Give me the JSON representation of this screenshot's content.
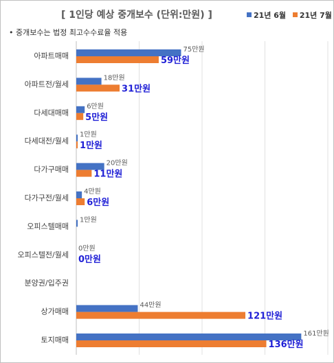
{
  "chart_data": {
    "type": "bar",
    "orientation": "horizontal",
    "title": "[ 1인당 예상 중개보수 (단위:만원) ]",
    "subtitle": "• 중개보수는 법정 최고수수료율 적용",
    "categories": [
      "아파트매매",
      "아파트전/월세",
      "다세대매매",
      "다세대전/월세",
      "다가구매매",
      "다가구전/월세",
      "오피스텔매매",
      "오피스텔전/월세",
      "분양권/입주권",
      "상가매매",
      "토지매매"
    ],
    "series": [
      {
        "name": "21년 6월",
        "color": "#4472c4",
        "values": [
          75,
          18,
          6,
          1,
          20,
          4,
          1,
          0,
          null,
          44,
          161
        ],
        "labels": [
          "75만원",
          "18만원",
          "6만원",
          "1만원",
          "20만원",
          "4만원",
          "1만원",
          "0만원",
          "",
          "44만원",
          "161만원"
        ]
      },
      {
        "name": "21년 7월",
        "color": "#ed7d31",
        "values": [
          59,
          31,
          5,
          1,
          11,
          6,
          null,
          0,
          null,
          121,
          136
        ],
        "labels": [
          "59만원",
          "31만원",
          "5만원",
          "1만원",
          "11만원",
          "6만원",
          "",
          "0만원",
          "",
          "121만원",
          "136만원"
        ]
      }
    ],
    "xlim": [
      0,
      180
    ],
    "grid": true,
    "legend_position": "top-right"
  }
}
